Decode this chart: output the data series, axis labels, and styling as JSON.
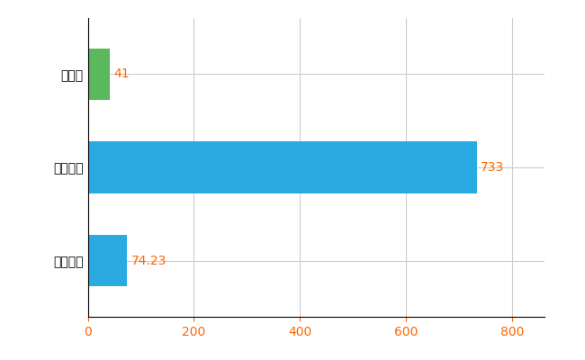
{
  "categories": [
    "長崎県",
    "全国最大",
    "全国平均"
  ],
  "values": [
    41,
    733,
    74.23
  ],
  "bar_colors": [
    "#5CB85C",
    "#29ABE2",
    "#29ABE2"
  ],
  "value_labels": [
    "41",
    "733",
    "74.23"
  ],
  "value_label_color": "#FF6600",
  "xlim": [
    0,
    860
  ],
  "xticks": [
    0,
    200,
    400,
    600,
    800
  ],
  "background_color": "#FFFFFF",
  "grid_color": "#CCCCCC",
  "bar_height": 0.55,
  "figsize": [
    6.5,
    4.0
  ],
  "dpi": 100
}
